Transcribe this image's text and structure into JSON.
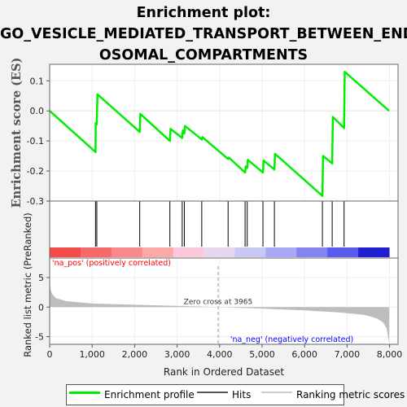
{
  "title_lines": [
    "Enrichment plot:",
    "GO_VESICLE_MEDIATED_TRANSPORT_BETWEEN_END",
    "OSOMAL_COMPARTMENTS"
  ],
  "colors": {
    "es_line": "#00ee00",
    "hits": "#000000",
    "metric_fill": "#bdbdbd",
    "pos_label": "#ff0000",
    "neg_label": "#0000ff",
    "zero_cross_line": "#bdbdbd"
  },
  "chart_data": {
    "type": "line",
    "xlabel": "Rank in Ordered Dataset",
    "x_ticks": [
      0,
      1000,
      2000,
      3000,
      4000,
      5000,
      6000,
      7000,
      8000
    ],
    "x_tick_labels": [
      "0",
      "1,000",
      "2,000",
      "3,000",
      "4,000",
      "5,000",
      "6,000",
      "7,000",
      "8,000"
    ],
    "xlim": [
      0,
      8200
    ],
    "es_panel": {
      "ylabel": "Enrichment score (ES)",
      "ylim": [
        -0.3,
        0.155
      ],
      "y_ticks": [
        0.1,
        0.0,
        -0.1,
        -0.2,
        -0.3
      ],
      "y_tick_labels": [
        "0.1",
        "0.0",
        "-0.1",
        "-0.2",
        "-0.3"
      ],
      "series": [
        {
          "name": "Enrichment profile",
          "points": [
            [
              0,
              0.0
            ],
            [
              1080,
              -0.137
            ],
            [
              1085,
              -0.04
            ],
            [
              1110,
              -0.045
            ],
            [
              1125,
              0.055
            ],
            [
              2120,
              -0.07
            ],
            [
              2135,
              -0.01
            ],
            [
              2830,
              -0.1
            ],
            [
              2845,
              -0.06
            ],
            [
              3120,
              -0.09
            ],
            [
              3135,
              -0.065
            ],
            [
              3170,
              -0.075
            ],
            [
              3185,
              -0.05
            ],
            [
              3580,
              -0.095
            ],
            [
              3595,
              -0.087
            ],
            [
              4200,
              -0.16
            ],
            [
              4215,
              -0.155
            ],
            [
              4600,
              -0.205
            ],
            [
              4615,
              -0.185
            ],
            [
              4650,
              -0.19
            ],
            [
              4665,
              -0.163
            ],
            [
              5020,
              -0.205
            ],
            [
              5035,
              -0.165
            ],
            [
              5290,
              -0.195
            ],
            [
              5305,
              -0.143
            ],
            [
              6420,
              -0.283
            ],
            [
              6435,
              -0.15
            ],
            [
              6650,
              -0.175
            ],
            [
              6665,
              -0.02
            ],
            [
              6930,
              -0.057
            ],
            [
              6945,
              0.13
            ],
            [
              7990,
              0.0
            ]
          ]
        }
      ]
    },
    "hits": [
      1080,
      1110,
      2120,
      2830,
      3120,
      3170,
      3580,
      4200,
      4600,
      4650,
      5020,
      5290,
      6420,
      6650,
      6930
    ],
    "heatmap_bar": {
      "colors": [
        "#f44a4a",
        "#f66a6a",
        "#f88a8a",
        "#faa8a8",
        "#fcc8dc",
        "#e8d6f0",
        "#c8c8f4",
        "#a8a8f4",
        "#8484f0",
        "#5a5aec",
        "#2020d0"
      ]
    },
    "metric_panel": {
      "ylabel": "Ranked list metric (PreRanked)",
      "ylim": [
        -6.3,
        8.3
      ],
      "y_ticks": [
        5,
        0,
        -5
      ],
      "y_tick_labels": [
        "5",
        "0",
        "-5"
      ],
      "curve": [
        [
          0,
          5.2
        ],
        [
          20,
          3.0
        ],
        [
          60,
          2.2
        ],
        [
          150,
          1.5
        ],
        [
          400,
          1.0
        ],
        [
          1000,
          0.6
        ],
        [
          2000,
          0.4
        ],
        [
          3000,
          0.2
        ],
        [
          3965,
          0.0
        ],
        [
          5000,
          -0.25
        ],
        [
          6000,
          -0.55
        ],
        [
          6800,
          -0.9
        ],
        [
          7400,
          -1.3
        ],
        [
          7700,
          -1.9
        ],
        [
          7850,
          -2.6
        ],
        [
          7930,
          -3.6
        ],
        [
          7970,
          -5.2
        ],
        [
          7990,
          -6.0
        ]
      ],
      "zero_cross_x": 3965,
      "zero_cross_label": "Zero cross at 3965",
      "pos_label": "'na_pos' (positively correlated)",
      "neg_label": "'na_neg' (negatively correlated)"
    }
  },
  "legend": [
    {
      "label": "Enrichment profile",
      "color": "#00ee00",
      "thickness": 3
    },
    {
      "label": "Hits",
      "color": "#555555",
      "thickness": 2
    },
    {
      "label": "Ranking metric scores",
      "color": "#cccccc",
      "thickness": 2
    }
  ]
}
